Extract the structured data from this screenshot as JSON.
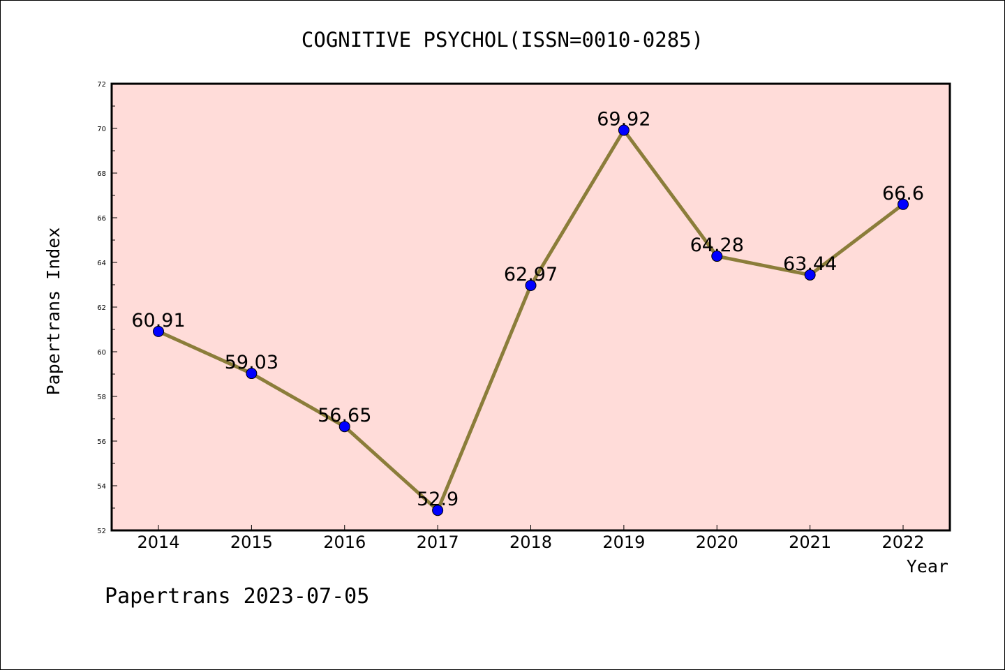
{
  "chart_data": {
    "type": "line",
    "title": "COGNITIVE PSYCHOL(ISSN=0010-0285)",
    "xlabel": "Year",
    "ylabel": "Papertrans Index",
    "categories": [
      "2014",
      "2015",
      "2016",
      "2017",
      "2018",
      "2019",
      "2020",
      "2021",
      "2022"
    ],
    "values": [
      60.91,
      59.03,
      56.65,
      52.9,
      62.97,
      69.92,
      64.28,
      63.44,
      66.6
    ],
    "data_labels": [
      "60.91",
      "59.03",
      "56.65",
      "52.9",
      "62.97",
      "69.92",
      "64.28",
      "63.44",
      "66.6"
    ],
    "ylim": [
      52,
      72
    ],
    "yticks": [
      "52",
      "54",
      "56",
      "58",
      "60",
      "62",
      "64",
      "66",
      "68",
      "70",
      "72"
    ],
    "grid": false,
    "legend": "none",
    "colors": {
      "plot_background": "#ffdcd9",
      "line": "#8b7d3a",
      "marker": "#0000ff"
    }
  },
  "footer": {
    "text": "Papertrans 2023-07-05"
  }
}
